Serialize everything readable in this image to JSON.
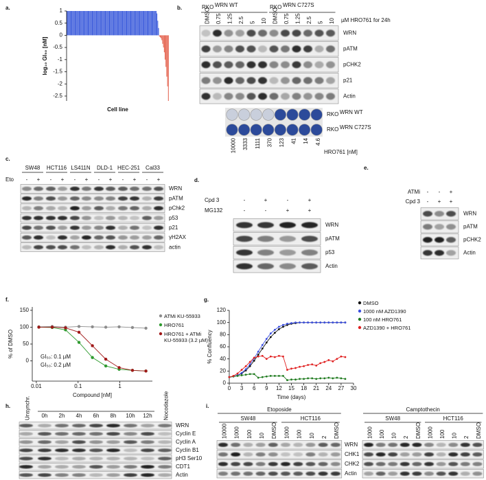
{
  "chart_data": [
    {
      "type": "bar",
      "label": "a.",
      "ylabel": "log₁₀ GI₅₀ [nM]",
      "xlabel": "Cell line",
      "values": [
        1,
        1,
        1,
        1,
        1,
        1,
        1,
        1,
        1,
        1,
        1,
        1,
        1,
        1,
        1,
        1,
        1,
        1,
        1,
        1,
        1,
        1,
        1,
        1,
        1,
        1,
        1,
        1,
        1,
        1,
        1,
        1,
        1,
        1,
        1,
        1,
        1,
        1,
        1,
        1,
        1,
        1,
        1,
        1,
        1,
        1,
        1,
        1,
        1,
        1,
        1,
        1,
        1,
        1,
        1,
        1,
        1,
        1,
        1,
        1,
        1,
        1,
        1,
        1,
        1,
        1,
        1,
        1,
        1,
        1,
        1,
        1,
        1,
        1,
        1,
        1,
        1,
        1,
        1,
        1,
        1,
        1,
        1,
        1,
        1,
        1,
        1,
        1,
        1,
        1,
        1,
        1,
        1,
        1,
        1,
        1,
        1,
        1,
        1,
        1,
        1,
        1,
        1,
        1,
        1,
        1,
        1,
        1,
        1,
        1,
        0.9,
        0.6,
        0.3,
        -0.05,
        -0.08,
        -0.12,
        -0.2,
        -0.35,
        -0.5,
        -0.7,
        -1.0,
        -1.3,
        -1.7,
        -2.1,
        -2.7
      ],
      "colors": {
        "positive": "#3b5bdb",
        "negative": "#e4604c"
      },
      "ylim": [
        -2.7,
        1
      ],
      "yticks": [
        1,
        0.5,
        0,
        -0.5,
        -1,
        -1.5,
        -2,
        -2.5
      ]
    },
    {
      "type": "line",
      "label": "f.",
      "xscale": "log",
      "ylabel": "% of DMSO",
      "xlabel": "Compound [nM]",
      "x": [
        0.0115,
        0.024,
        0.05,
        0.105,
        0.22,
        0.46,
        0.96,
        2.0,
        4.2
      ],
      "series": [
        {
          "name": "ATMi KU-55933",
          "color": "#8c8c8c",
          "values": [
            101,
            102,
            100,
            102,
            101,
            100,
            101,
            99,
            97
          ]
        },
        {
          "name": "HRO761",
          "color": "#2f9a2f",
          "values": [
            100,
            99,
            92,
            55,
            10,
            -15,
            -25,
            -28,
            -30
          ]
        },
        {
          "name": "HRO761 + ATMi KU-55933 (3.2 µM)",
          "color": "#a01818",
          "values": [
            100,
            100,
            98,
            85,
            45,
            5,
            -20,
            -28,
            -30
          ]
        }
      ],
      "annotations": [
        {
          "text": "GI₅₀: 0.1 µM",
          "color": "#2f9a2f"
        },
        {
          "text": "GI₅₀: 0.2 µM",
          "color": "#a01818"
        }
      ],
      "xlim": [
        0.008,
        6
      ],
      "xticks": [
        0.01,
        0.1,
        1
      ],
      "ylim": [
        -60,
        160
      ],
      "yticks": [
        0,
        50,
        100,
        150
      ]
    },
    {
      "type": "line",
      "label": "g.",
      "ylabel": "% Confluency",
      "xlabel": "Time (days)",
      "x": [
        0,
        1,
        2,
        3,
        4,
        5,
        6,
        7,
        8,
        9,
        10,
        11,
        12,
        13,
        14,
        15,
        16,
        17,
        18,
        19,
        20,
        21,
        22,
        23,
        24,
        25,
        26,
        27,
        28
      ],
      "series": [
        {
          "name": "DMSO",
          "color": "#111111",
          "values": [
            10,
            11,
            13,
            16,
            21,
            28,
            37,
            47,
            57,
            67,
            76,
            83,
            89,
            93,
            96,
            98,
            99,
            100,
            100,
            100,
            100,
            100,
            100,
            100,
            100,
            100,
            100,
            100,
            100
          ]
        },
        {
          "name": "1000 nM AZD1390",
          "color": "#3b4fe0",
          "values": [
            10,
            11,
            13,
            17,
            23,
            31,
            41,
            52,
            63,
            73,
            82,
            88,
            93,
            96,
            98,
            99,
            100,
            100,
            100,
            100,
            100,
            100,
            100,
            100,
            100,
            100,
            100,
            100,
            100
          ]
        },
        {
          "name": "100 nM HRO761",
          "color": "#1e7a1e",
          "values": [
            10,
            11,
            12,
            13,
            14,
            15,
            15,
            9,
            10,
            11,
            12,
            12,
            12,
            12,
            5,
            6,
            6,
            7,
            7,
            8,
            8,
            7,
            8,
            8,
            9,
            8,
            9,
            8,
            7
          ]
        },
        {
          "name": "AZD1390 + HRO761",
          "color": "#e02020",
          "values": [
            10,
            12,
            16,
            22,
            28,
            35,
            42,
            44,
            45,
            40,
            44,
            43,
            45,
            44,
            22,
            24,
            25,
            27,
            28,
            30,
            31,
            29,
            33,
            35,
            38,
            36,
            40,
            44,
            43
          ]
        }
      ],
      "xlim": [
        0,
        30
      ],
      "xticks": [
        0,
        3,
        6,
        9,
        12,
        15,
        18,
        21,
        24,
        27,
        30
      ],
      "ylim": [
        0,
        120
      ],
      "yticks": [
        0,
        20,
        40,
        60,
        80,
        100,
        120
      ]
    }
  ],
  "blots": {
    "b": {
      "label": "b.",
      "groups": [
        {
          "name": "RKO",
          "sup": "WRN WT",
          "lanes": [
            "DMSO",
            "0.75",
            "1.25",
            "2.5",
            "5",
            "10"
          ]
        },
        {
          "name": "RKO",
          "sup": "WRN C727S",
          "lanes": [
            "DMSO",
            "0.75",
            "1.25",
            "2.5",
            "5",
            "10"
          ]
        }
      ],
      "note": "µM HRO761 for 24h",
      "rows": [
        "WRN",
        "pATM",
        "pCHK2",
        "p21",
        "Actin"
      ],
      "colony": {
        "rows": [
          {
            "name": "RKO",
            "sup": "WRN WT"
          },
          {
            "name": "RKO",
            "sup": "WRN C727S"
          }
        ],
        "concentrations": [
          "10000",
          "3333",
          "1111",
          "370",
          "123",
          "41",
          "14",
          "4.6"
        ],
        "unit": "HRO761 [nM]"
      }
    },
    "c": {
      "label": "c.",
      "treatment": "Eto",
      "groups": [
        {
          "name": "SW48",
          "lanes": [
            "-",
            "+"
          ]
        },
        {
          "name": "HCT116",
          "lanes": [
            "-",
            "+"
          ]
        },
        {
          "name": "LS411N",
          "lanes": [
            "-",
            "+"
          ]
        },
        {
          "name": "DLD-1",
          "lanes": [
            "-",
            "+"
          ]
        },
        {
          "name": "HEC-251",
          "lanes": [
            "-",
            "+"
          ]
        },
        {
          "name": "Cal33",
          "lanes": [
            "-",
            "+"
          ]
        }
      ],
      "rows": [
        "WRN",
        "pATM",
        "pChk2",
        "p53",
        "p21",
        "γH2AX",
        "actin"
      ]
    },
    "d": {
      "label": "d.",
      "conditions": [
        {
          "name": "Cpd 3",
          "signs": [
            "-",
            "+",
            "-",
            "+"
          ]
        },
        {
          "name": "MG132",
          "signs": [
            "-",
            "-",
            "+",
            "+"
          ]
        }
      ],
      "rows": [
        "WRN",
        "pATM",
        "p53",
        "Actin"
      ]
    },
    "e": {
      "label": "e.",
      "conditions": [
        {
          "name": "ATMi",
          "signs": [
            "-",
            "-",
            "+"
          ]
        },
        {
          "name": "Cpd 3",
          "signs": [
            "-",
            "+",
            "+"
          ]
        }
      ],
      "rows": [
        "WRN",
        "pATM",
        "pCHK2",
        "Actin"
      ]
    },
    "h": {
      "label": "h.",
      "lanes": [
        "Unsynchr.",
        "0h",
        "2h",
        "4h",
        "6h",
        "8h",
        "10h",
        "12h",
        "Nocodazole"
      ],
      "rows": [
        "WRN",
        "Cyclin E",
        "Cyclin A",
        "Cyclin B1",
        "pH3 Ser10",
        "CDT1",
        "Actin"
      ]
    },
    "i": {
      "label": "i.",
      "treatments": [
        {
          "name": "Etoposide",
          "groups": [
            {
              "name": "SW48",
              "lanes": [
                "10000",
                "1000",
                "100",
                "10",
                "DMSO"
              ]
            },
            {
              "name": "HCT116",
              "lanes": [
                "1000",
                "100",
                "10",
                "2",
                "DMSO"
              ]
            }
          ]
        },
        {
          "name": "Camptothecin",
          "groups": [
            {
              "name": "SW48",
              "lanes": [
                "1000",
                "100",
                "10",
                "2",
                "DMSO"
              ]
            },
            {
              "name": "HCT116",
              "lanes": [
                "1000",
                "100",
                "10",
                "2",
                "DMSO"
              ]
            }
          ]
        }
      ],
      "rows": [
        "WRN",
        "CHK1",
        "CHK2",
        "Actin"
      ]
    }
  }
}
